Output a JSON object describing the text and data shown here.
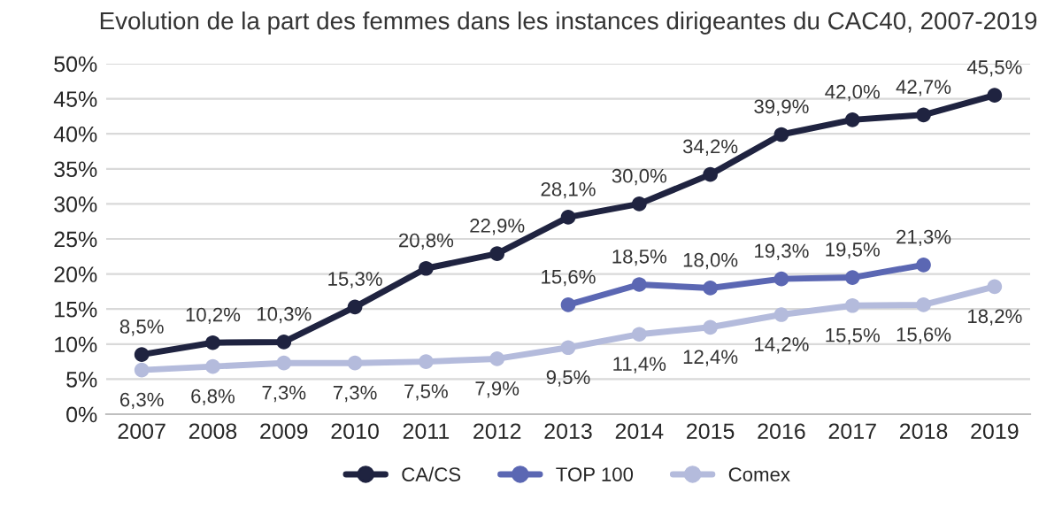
{
  "chart_data": {
    "type": "line",
    "title": "Evolution de la part des femmes dans les instances dirigeantes du CAC40, 2007-2019",
    "categories": [
      "2007",
      "2008",
      "2009",
      "2010",
      "2011",
      "2012",
      "2013",
      "2014",
      "2015",
      "2016",
      "2017",
      "2018",
      "2019"
    ],
    "series": [
      {
        "name": "CA/CS",
        "color": "#1f2340",
        "values": [
          8.5,
          10.2,
          10.3,
          15.3,
          20.8,
          22.9,
          28.1,
          30.0,
          34.2,
          39.9,
          42.0,
          42.7,
          45.5
        ],
        "value_labels": [
          "8,5%",
          "10,2%",
          "10,3%",
          "15,3%",
          "20,8%",
          "22,9%",
          "28,1%",
          "30,0%",
          "34,2%",
          "39,9%",
          "42,0%",
          "42,7%",
          "45,5%"
        ]
      },
      {
        "name": "TOP 100",
        "color": "#5b67b3",
        "values": [
          null,
          null,
          null,
          null,
          null,
          null,
          15.6,
          18.5,
          18.0,
          19.3,
          19.5,
          21.3,
          null
        ],
        "value_labels": [
          null,
          null,
          null,
          null,
          null,
          null,
          "15,6%",
          "18,5%",
          "18,0%",
          "19,3%",
          "19,5%",
          "21,3%",
          null
        ]
      },
      {
        "name": "Comex",
        "color": "#b4bbdc",
        "values": [
          6.3,
          6.8,
          7.3,
          7.3,
          7.5,
          7.9,
          9.5,
          11.4,
          12.4,
          14.2,
          15.5,
          15.6,
          18.2
        ],
        "value_labels": [
          "6,3%",
          "6,8%",
          "7,3%",
          "7,3%",
          "7,5%",
          "7,9%",
          "9,5%",
          "11,4%",
          "12,4%",
          "14,2%",
          "15,5%",
          "15,6%",
          "18,2%"
        ]
      }
    ],
    "ylim": [
      0,
      50
    ],
    "yticks": [
      {
        "value": 0,
        "label": "0%"
      },
      {
        "value": 5,
        "label": "5%"
      },
      {
        "value": 10,
        "label": "10%"
      },
      {
        "value": 15,
        "label": "15%"
      },
      {
        "value": 20,
        "label": "20%"
      },
      {
        "value": 25,
        "label": "25%"
      },
      {
        "value": 30,
        "label": "30%"
      },
      {
        "value": 35,
        "label": "35%"
      },
      {
        "value": 40,
        "label": "40%"
      },
      {
        "value": 45,
        "label": "45%"
      },
      {
        "value": 50,
        "label": "50%"
      }
    ],
    "grid": "y",
    "legend": "bottom",
    "marker": "circle",
    "line_style": "solid"
  }
}
